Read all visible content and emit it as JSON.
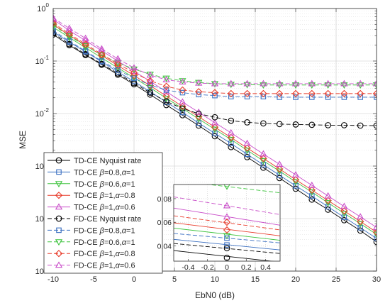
{
  "chart_data": {
    "type": "line",
    "xlabel": "EbN0 (dB)",
    "ylabel": "MSE",
    "xlim": [
      -10,
      30
    ],
    "ylim": [
      1e-05,
      1
    ],
    "yscale": "log",
    "grid": true,
    "legend_position": "bottom-left",
    "x_ticks": [
      "-10",
      "-5",
      "0",
      "5",
      "10",
      "15",
      "20",
      "25",
      "30"
    ],
    "y_ticks": [
      {
        "base": "10",
        "exp": "0"
      },
      {
        "base": "10",
        "exp": "-1"
      },
      {
        "base": "10",
        "exp": "-2"
      },
      {
        "base": "10",
        "exp": "-3"
      },
      {
        "base": "10",
        "exp": "-4"
      },
      {
        "base": "10",
        "exp": "-5"
      }
    ],
    "x": [
      -10,
      -8,
      -6,
      -4,
      -2,
      0,
      2,
      4,
      6,
      8,
      10,
      12,
      14,
      16,
      18,
      20,
      22,
      24,
      26,
      28,
      30
    ],
    "series": [
      {
        "label_parts": [
          "TD-CE Nyquist rate"
        ],
        "color": "#000000",
        "marker": "circle",
        "dash": false,
        "values": [
          0.32,
          0.2,
          0.13,
          0.085,
          0.055,
          0.036,
          0.023,
          0.0145,
          0.0093,
          0.0059,
          0.0037,
          0.0023,
          0.00148,
          0.00093,
          0.00059,
          0.00037,
          0.00023,
          0.000148,
          9.3e-05,
          5.9e-05,
          3.6e-05
        ]
      },
      {
        "label_parts": [
          "TD-CE ",
          "β",
          "=0.8,",
          "α",
          "=1"
        ],
        "color": "#3a6fc1",
        "marker": "square",
        "dash": false,
        "values": [
          0.36,
          0.23,
          0.15,
          0.097,
          0.062,
          0.041,
          0.026,
          0.0165,
          0.0105,
          0.0066,
          0.0042,
          0.0027,
          0.00168,
          0.00106,
          0.00067,
          0.00042,
          0.00027,
          0.000168,
          0.000106,
          6.7e-05,
          4.2e-05
        ]
      },
      {
        "label_parts": [
          "TD-CE ",
          "β",
          "=0.6,",
          "α",
          "=1"
        ],
        "color": "#3fc43f",
        "marker": "triangle-down",
        "dash": false,
        "values": [
          0.44,
          0.28,
          0.18,
          0.115,
          0.074,
          0.048,
          0.031,
          0.0195,
          0.0125,
          0.0079,
          0.005,
          0.0032,
          0.002,
          0.00126,
          0.0008,
          0.0005,
          0.00032,
          0.0002,
          0.000126,
          8e-05,
          5e-05
        ]
      },
      {
        "label_parts": [
          "TD-CE ",
          "β",
          "=1,",
          "α",
          "=0.8"
        ],
        "color": "#e83b2a",
        "marker": "diamond",
        "dash": false,
        "values": [
          0.5,
          0.31,
          0.2,
          0.128,
          0.082,
          0.053,
          0.034,
          0.0215,
          0.0137,
          0.0087,
          0.0055,
          0.0035,
          0.0022,
          0.0014,
          0.00088,
          0.00055,
          0.00035,
          0.00022,
          0.00014,
          8.8e-05,
          5.5e-05
        ]
      },
      {
        "label_parts": [
          "TD-CE ",
          "β",
          "=1,",
          "α",
          "=0.6"
        ],
        "color": "#c94ec9",
        "marker": "triangle-up",
        "dash": false,
        "values": [
          0.62,
          0.38,
          0.245,
          0.157,
          0.1,
          0.064,
          0.041,
          0.026,
          0.0166,
          0.0106,
          0.0067,
          0.0043,
          0.0027,
          0.0017,
          0.00108,
          0.00068,
          0.00043,
          0.00027,
          0.00017,
          0.000108,
          6.8e-05
        ]
      },
      {
        "label_parts": [
          "FD-CE Nyquist rate"
        ],
        "color": "#000000",
        "marker": "circle",
        "dash": true,
        "values": [
          0.34,
          0.21,
          0.135,
          0.088,
          0.058,
          0.038,
          0.025,
          0.017,
          0.0125,
          0.0099,
          0.0085,
          0.0073,
          0.0068,
          0.0065,
          0.0063,
          0.0062,
          0.0061,
          0.006,
          0.006,
          0.0059,
          0.0059
        ]
      },
      {
        "label_parts": [
          "FD-CE ",
          "β",
          "=0.8,",
          "α",
          "=1"
        ],
        "color": "#3a6fc1",
        "marker": "square",
        "dash": true,
        "values": [
          0.38,
          0.24,
          0.155,
          0.1,
          0.067,
          0.047,
          0.035,
          0.028,
          0.025,
          0.023,
          0.022,
          0.021,
          0.021,
          0.021,
          0.0205,
          0.0205,
          0.0205,
          0.0205,
          0.0205,
          0.0205,
          0.0205
        ]
      },
      {
        "label_parts": [
          "FD-CE ",
          "β",
          "=0.6,",
          "α",
          "=1"
        ],
        "color": "#3fc43f",
        "marker": "triangle-down",
        "dash": true,
        "values": [
          0.48,
          0.3,
          0.195,
          0.13,
          0.093,
          0.07,
          0.056,
          0.047,
          0.042,
          0.039,
          0.037,
          0.036,
          0.0355,
          0.035,
          0.035,
          0.035,
          0.035,
          0.035,
          0.035,
          0.035,
          0.035
        ]
      },
      {
        "label_parts": [
          "FD-CE ",
          "β",
          "=1,",
          "α",
          "=0.8"
        ],
        "color": "#e83b2a",
        "marker": "diamond",
        "dash": true,
        "values": [
          0.53,
          0.33,
          0.21,
          0.135,
          0.088,
          0.06,
          0.042,
          0.033,
          0.028,
          0.026,
          0.025,
          0.024,
          0.024,
          0.024,
          0.024,
          0.024,
          0.024,
          0.024,
          0.024,
          0.024,
          0.024
        ]
      },
      {
        "label_parts": [
          "FD-CE ",
          "β",
          "=1,",
          "α",
          "=0.6"
        ],
        "color": "#c94ec9",
        "marker": "triangle-up",
        "dash": true,
        "values": [
          0.66,
          0.42,
          0.27,
          0.17,
          0.11,
          0.074,
          0.054,
          0.044,
          0.04,
          0.038,
          0.037,
          0.037,
          0.037,
          0.037,
          0.037,
          0.037,
          0.037,
          0.037,
          0.037,
          0.037,
          0.037
        ]
      }
    ],
    "inset": {
      "xlim": [
        -0.55,
        0.55
      ],
      "ylim": [
        0.027,
        0.092
      ],
      "x_ticks": [
        "-0.4",
        "-0.2",
        "0",
        "0.2",
        "0.4"
      ],
      "y_ticks": [
        "0.04",
        "0.06",
        "0.08"
      ],
      "y_tick_values": [
        0.04,
        0.06,
        0.08
      ],
      "x_tick_values": [
        -0.4,
        -0.2,
        0,
        0.2,
        0.4
      ],
      "lines": [
        {
          "series": 0,
          "left": 0.036,
          "right": 0.0262,
          "marker_value": 0.0299
        },
        {
          "series": 1,
          "left": 0.0455,
          "right": 0.0365,
          "marker_value": 0.0407
        },
        {
          "series": 2,
          "left": 0.055,
          "right": 0.0447,
          "marker_value": 0.0485
        },
        {
          "series": 3,
          "left": 0.0595,
          "right": 0.0485,
          "marker_value": 0.0535
        },
        {
          "series": 4,
          "left": 0.072,
          "right": 0.0575,
          "marker_value": 0.0645
        },
        {
          "series": 5,
          "left": 0.042,
          "right": 0.0335,
          "marker_value": 0.038
        },
        {
          "series": 6,
          "left": 0.0505,
          "right": 0.0425,
          "marker_value": 0.0465
        },
        {
          "series": 7,
          "left": 0.0955,
          "right": 0.085,
          "marker_value": 0.0905
        },
        {
          "series": 8,
          "left": 0.0655,
          "right": 0.0535,
          "marker_value": 0.06
        },
        {
          "series": 9,
          "left": 0.0815,
          "right": 0.0665,
          "marker_value": 0.074
        }
      ]
    }
  }
}
